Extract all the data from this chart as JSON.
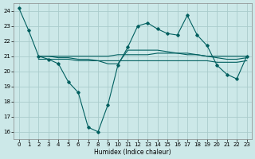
{
  "xlabel": "Humidex (Indice chaleur)",
  "background_color": "#cce8e8",
  "grid_color": "#aacccc",
  "line_color": "#005f5f",
  "xlim": [
    -0.5,
    23.5
  ],
  "ylim": [
    15.5,
    24.5
  ],
  "yticks": [
    16,
    17,
    18,
    19,
    20,
    21,
    22,
    23,
    24
  ],
  "xticks": [
    0,
    1,
    2,
    3,
    4,
    5,
    6,
    7,
    8,
    9,
    10,
    11,
    12,
    13,
    14,
    15,
    16,
    17,
    18,
    19,
    20,
    21,
    22,
    23
  ],
  "series": [
    {
      "x": [
        0,
        1,
        2,
        3,
        4,
        5,
        6,
        7,
        8,
        9,
        10,
        11,
        12,
        13,
        14,
        15,
        16,
        17,
        18,
        19,
        20,
        21,
        22,
        23
      ],
      "y": [
        24.2,
        22.7,
        21.0,
        20.8,
        20.5,
        19.3,
        18.6,
        16.3,
        16.0,
        17.8,
        20.4,
        21.6,
        23.0,
        23.2,
        22.8,
        22.5,
        22.4,
        23.7,
        22.4,
        21.7,
        20.4,
        19.8,
        19.5,
        21.0
      ],
      "marker": true
    },
    {
      "x": [
        2,
        3,
        4,
        5,
        6,
        7,
        8,
        9,
        10,
        11,
        12,
        13,
        14,
        15,
        16,
        17,
        18,
        19,
        20,
        21,
        22,
        23
      ],
      "y": [
        21.0,
        21.0,
        21.0,
        21.0,
        21.0,
        21.0,
        21.0,
        21.0,
        21.1,
        21.1,
        21.1,
        21.1,
        21.2,
        21.2,
        21.2,
        21.1,
        21.1,
        21.0,
        21.0,
        21.0,
        21.0,
        21.0
      ],
      "marker": false
    },
    {
      "x": [
        2,
        3,
        4,
        5,
        6,
        7,
        8,
        9,
        10,
        11,
        12,
        13,
        14,
        15,
        16,
        17,
        18,
        19,
        20,
        21,
        22,
        23
      ],
      "y": [
        20.8,
        20.8,
        20.8,
        20.8,
        20.7,
        20.7,
        20.7,
        20.7,
        20.7,
        20.7,
        20.7,
        20.7,
        20.7,
        20.7,
        20.7,
        20.7,
        20.7,
        20.7,
        20.6,
        20.6,
        20.6,
        20.7
      ],
      "marker": false
    },
    {
      "x": [
        2,
        3,
        4,
        5,
        6,
        7,
        8,
        9,
        10,
        11,
        12,
        13,
        14,
        15,
        16,
        17,
        18,
        19,
        20,
        21,
        22,
        23
      ],
      "y": [
        21.0,
        21.0,
        20.9,
        20.9,
        20.8,
        20.8,
        20.7,
        20.5,
        20.5,
        21.4,
        21.4,
        21.4,
        21.4,
        21.3,
        21.2,
        21.2,
        21.1,
        21.0,
        20.9,
        20.8,
        20.8,
        20.9
      ],
      "marker": false
    }
  ]
}
